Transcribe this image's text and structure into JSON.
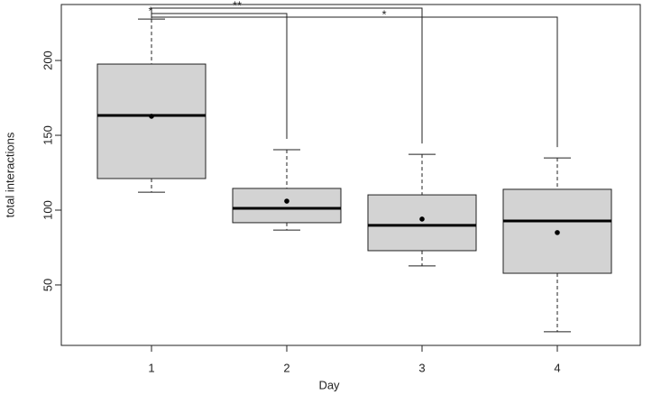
{
  "chart_data": {
    "type": "box",
    "x_label": "Day",
    "y_label": "total interactions",
    "categories": [
      "1",
      "2",
      "3",
      "4"
    ],
    "boxes": [
      {
        "min": 112.0,
        "q1": 121.1,
        "median": 163.3,
        "q3": 197.6,
        "max": 227.7,
        "mean": 162.7
      },
      {
        "min": 86.7,
        "q1": 91.6,
        "median": 101.2,
        "q3": 114.5,
        "max": 140.4,
        "mean": 106.0
      },
      {
        "min": 62.7,
        "q1": 72.9,
        "median": 89.8,
        "q3": 110.2,
        "max": 137.3,
        "mean": 94.0
      },
      {
        "min": 18.7,
        "q1": 57.8,
        "median": 92.8,
        "q3": 113.9,
        "max": 134.9,
        "mean": 85.0
      }
    ],
    "color": "#d3d3d3",
    "ylim": [
      9.6,
      237.4
    ],
    "yticks": [
      50,
      100,
      150,
      200
    ],
    "comparisons": [
      {
        "from": "1",
        "to": "2",
        "label": "*"
      },
      {
        "from": "1",
        "to": "3",
        "label": "**"
      },
      {
        "from": "1",
        "to": "4",
        "label": "*"
      }
    ]
  }
}
